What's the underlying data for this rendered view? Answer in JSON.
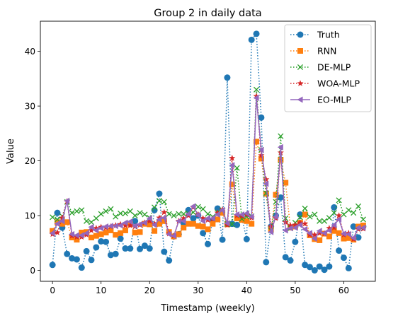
{
  "chart_data": {
    "type": "line",
    "title": "Group 2 in daily data",
    "xlabel": "Timestamp (weekly)",
    "ylabel": "Value",
    "xlim": [
      -2.5,
      66.5
    ],
    "ylim": [
      -2.0,
      45.5
    ],
    "xticks": [
      0,
      10,
      20,
      30,
      40,
      50,
      60
    ],
    "yticks": [
      0,
      10,
      20,
      30,
      40
    ],
    "grid": false,
    "legend_position": "top-right",
    "x": [
      0,
      1,
      2,
      3,
      4,
      5,
      6,
      7,
      8,
      9,
      10,
      11,
      12,
      13,
      14,
      15,
      16,
      17,
      18,
      19,
      20,
      21,
      22,
      23,
      24,
      25,
      26,
      27,
      28,
      29,
      30,
      31,
      32,
      33,
      34,
      35,
      36,
      37,
      38,
      39,
      40,
      41,
      42,
      43,
      44,
      45,
      46,
      47,
      48,
      49,
      50,
      51,
      52,
      53,
      54,
      55,
      56,
      57,
      58,
      59,
      60,
      61,
      62,
      63,
      64
    ],
    "series": [
      {
        "name": "Truth",
        "color": "#1f77b4",
        "marker": "circle",
        "linestyle": "dotted",
        "values": [
          1.0,
          10.5,
          7.8,
          3.0,
          2.2,
          2.0,
          0.5,
          3.5,
          1.9,
          4.2,
          5.3,
          5.2,
          2.8,
          3.0,
          5.8,
          4.0,
          4.0,
          9.0,
          3.9,
          4.5,
          4.0,
          11.0,
          14.0,
          3.4,
          1.8,
          6.2,
          6.6,
          8.6,
          11.0,
          9.5,
          10.0,
          6.8,
          4.8,
          9.0,
          11.3,
          5.6,
          35.2,
          8.5,
          8.3,
          9.6,
          5.7,
          42.1,
          43.2,
          27.9,
          1.5,
          8.0,
          10.0,
          13.3,
          2.4,
          1.8,
          5.2,
          10.2,
          1.0,
          0.6,
          0.0,
          0.7,
          0.1,
          0.7,
          11.5,
          3.6,
          2.3,
          0.4,
          8.0,
          6.0,
          8.0
        ]
      },
      {
        "name": "RNN",
        "color": "#ff7f0e",
        "marker": "square",
        "linestyle": "dotted",
        "values": [
          7.2,
          8.8,
          8.5,
          8.8,
          6.0,
          5.6,
          6.9,
          7.0,
          6.0,
          6.3,
          6.6,
          6.9,
          7.3,
          6.5,
          6.8,
          7.3,
          8.4,
          6.9,
          7.0,
          8.5,
          8.4,
          7.2,
          8.5,
          9.0,
          7.0,
          6.2,
          6.6,
          7.8,
          8.5,
          8.5,
          8.1,
          8.0,
          7.5,
          8.5,
          9.3,
          10.5,
          8.4,
          15.7,
          9.5,
          9.2,
          9.0,
          8.5,
          23.5,
          20.4,
          14.0,
          7.5,
          13.8,
          20.2,
          16.0,
          7.8,
          8.0,
          8.7,
          10.2,
          6.4,
          5.7,
          5.5,
          6.7,
          6.2,
          7.2,
          6.8,
          5.8,
          5.9,
          5.6,
          8.0,
          8.2
        ]
      },
      {
        "name": "DE-MLP",
        "color": "#2ca02c",
        "marker": "x",
        "linestyle": "dotted",
        "values": [
          9.7,
          9.3,
          9.9,
          12.5,
          10.5,
          10.8,
          11.0,
          9.0,
          8.8,
          9.5,
          10.3,
          10.8,
          11.2,
          9.8,
          10.4,
          10.4,
          10.8,
          10.0,
          10.5,
          10.2,
          9.6,
          11.5,
          12.7,
          12.5,
          10.3,
          10.0,
          10.3,
          10.3,
          10.4,
          10.6,
          11.6,
          11.2,
          10.3,
          9.8,
          10.6,
          11.0,
          8.5,
          8.4,
          18.7,
          9.4,
          9.8,
          9.9,
          33.0,
          22.0,
          14.1,
          7.3,
          12.5,
          24.5,
          9.5,
          7.7,
          8.7,
          9.7,
          11.3,
          9.8,
          10.2,
          9.0,
          9.0,
          9.6,
          10.5,
          12.8,
          10.2,
          11.0,
          10.5,
          11.7,
          9.3
        ]
      },
      {
        "name": "WOA-MLP",
        "color": "#d62728",
        "marker": "star",
        "linestyle": "dotted",
        "values": [
          6.6,
          6.9,
          9.6,
          12.6,
          6.3,
          6.1,
          6.1,
          6.5,
          7.3,
          7.7,
          7.9,
          7.8,
          8.0,
          8.2,
          8.4,
          8.2,
          8.2,
          8.0,
          8.3,
          8.7,
          9.0,
          8.5,
          9.6,
          10.6,
          6.7,
          6.3,
          9.0,
          9.5,
          10.0,
          11.5,
          10.2,
          9.5,
          9.2,
          9.4,
          10.5,
          11.1,
          8.3,
          20.5,
          10.0,
          9.9,
          10.2,
          9.6,
          31.8,
          21.0,
          16.6,
          8.0,
          9.5,
          21.5,
          8.8,
          8.2,
          8.3,
          8.7,
          8.5,
          6.5,
          6.5,
          6.8,
          6.7,
          7.7,
          7.8,
          10.0,
          6.5,
          6.8,
          5.7,
          7.5,
          7.6
        ]
      },
      {
        "name": "EO-MLP",
        "color": "#9467bd",
        "marker": "triangle-left",
        "linestyle": "solid",
        "values": [
          6.8,
          8.5,
          9.0,
          12.7,
          6.6,
          6.4,
          6.4,
          6.8,
          7.9,
          7.3,
          7.7,
          8.0,
          8.1,
          8.1,
          8.2,
          8.7,
          8.9,
          8.1,
          8.4,
          8.7,
          9.5,
          8.3,
          9.3,
          9.6,
          6.6,
          6.3,
          9.0,
          9.0,
          10.3,
          11.7,
          10.1,
          9.0,
          9.5,
          9.5,
          10.2,
          11.0,
          8.6,
          19.2,
          10.2,
          10.2,
          10.4,
          9.8,
          31.5,
          22.0,
          15.8,
          7.0,
          9.8,
          22.5,
          7.3,
          7.7,
          7.8,
          8.3,
          7.5,
          6.8,
          5.8,
          7.2,
          6.8,
          7.3,
          8.3,
          9.3,
          6.7,
          6.6,
          5.9,
          7.8,
          7.8
        ]
      }
    ]
  }
}
